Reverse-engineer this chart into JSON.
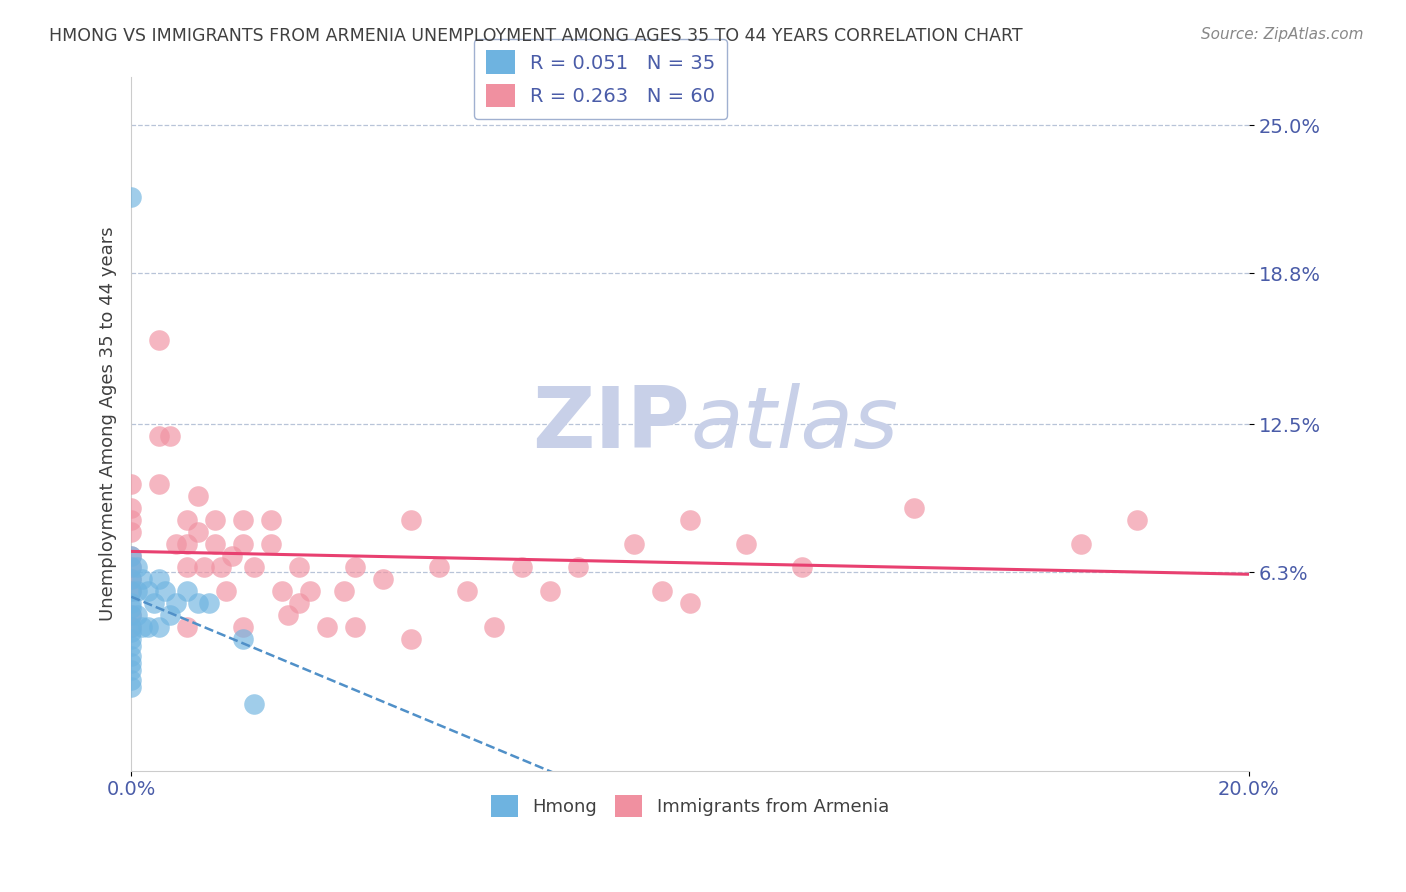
{
  "title": "HMONG VS IMMIGRANTS FROM ARMENIA UNEMPLOYMENT AMONG AGES 35 TO 44 YEARS CORRELATION CHART",
  "source": "Source: ZipAtlas.com",
  "ylabel": "Unemployment Among Ages 35 to 44 years",
  "xlim": [
    0.0,
    0.2
  ],
  "ylim": [
    -0.02,
    0.27
  ],
  "ytick_vals": [
    0.063,
    0.125,
    0.188,
    0.25
  ],
  "ytick_labels": [
    "6.3%",
    "12.5%",
    "18.8%",
    "25.0%"
  ],
  "xtick_vals": [
    0.0,
    0.2
  ],
  "xtick_labels": [
    "0.0%",
    "20.0%"
  ],
  "legend_r1": "R = 0.051",
  "legend_n1": "N = 35",
  "legend_r2": "R = 0.263",
  "legend_n2": "N = 60",
  "color_hmong": "#6eb3e0",
  "color_armenia": "#f090a0",
  "color_hmong_line": "#5090c8",
  "color_armenia_line": "#e84070",
  "color_title": "#404040",
  "color_axis_labels": "#4a5ca8",
  "watermark_color": "#c8d0e8",
  "background_color": "#ffffff",
  "hmong_x": [
    0.0,
    0.0,
    0.0,
    0.0,
    0.0,
    0.0,
    0.0,
    0.0,
    0.0,
    0.0,
    0.0,
    0.0,
    0.0,
    0.0,
    0.0,
    0.0,
    0.0,
    0.001,
    0.001,
    0.001,
    0.002,
    0.002,
    0.003,
    0.003,
    0.004,
    0.005,
    0.005,
    0.006,
    0.007,
    0.008,
    0.01,
    0.012,
    0.014,
    0.02,
    0.022
  ],
  "hmong_y": [
    0.22,
    0.07,
    0.065,
    0.06,
    0.055,
    0.05,
    0.048,
    0.045,
    0.04,
    0.038,
    0.035,
    0.032,
    0.028,
    0.025,
    0.022,
    0.018,
    0.015,
    0.065,
    0.055,
    0.045,
    0.06,
    0.04,
    0.055,
    0.04,
    0.05,
    0.06,
    0.04,
    0.055,
    0.045,
    0.05,
    0.055,
    0.05,
    0.05,
    0.035,
    0.008
  ],
  "armenia_x": [
    0.0,
    0.0,
    0.0,
    0.0,
    0.0,
    0.0,
    0.0,
    0.0,
    0.0,
    0.0,
    0.005,
    0.005,
    0.005,
    0.007,
    0.008,
    0.01,
    0.01,
    0.01,
    0.01,
    0.012,
    0.012,
    0.013,
    0.015,
    0.015,
    0.016,
    0.017,
    0.018,
    0.02,
    0.02,
    0.02,
    0.022,
    0.025,
    0.025,
    0.027,
    0.028,
    0.03,
    0.03,
    0.032,
    0.035,
    0.038,
    0.04,
    0.04,
    0.045,
    0.05,
    0.05,
    0.055,
    0.06,
    0.065,
    0.07,
    0.075,
    0.08,
    0.09,
    0.095,
    0.1,
    0.1,
    0.11,
    0.12,
    0.14,
    0.17,
    0.18
  ],
  "armenia_y": [
    0.1,
    0.09,
    0.085,
    0.08,
    0.07,
    0.065,
    0.06,
    0.055,
    0.045,
    0.04,
    0.16,
    0.12,
    0.1,
    0.12,
    0.075,
    0.085,
    0.075,
    0.065,
    0.04,
    0.095,
    0.08,
    0.065,
    0.085,
    0.075,
    0.065,
    0.055,
    0.07,
    0.085,
    0.075,
    0.04,
    0.065,
    0.085,
    0.075,
    0.055,
    0.045,
    0.065,
    0.05,
    0.055,
    0.04,
    0.055,
    0.065,
    0.04,
    0.06,
    0.085,
    0.035,
    0.065,
    0.055,
    0.04,
    0.065,
    0.055,
    0.065,
    0.075,
    0.055,
    0.085,
    0.05,
    0.075,
    0.065,
    0.09,
    0.075,
    0.085
  ]
}
